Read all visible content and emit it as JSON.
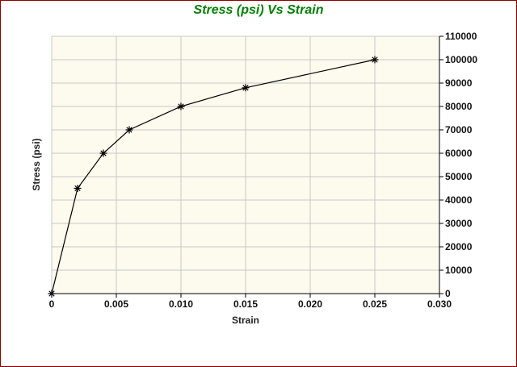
{
  "chart_data": {
    "type": "line",
    "title": "Stress (psi) Vs Strain",
    "xlabel": "Strain",
    "ylabel": "Stress (psi)",
    "xlim": [
      0,
      0.03
    ],
    "ylim": [
      0,
      110000
    ],
    "x_ticks": [
      "0",
      "0.005",
      "0.010",
      "0.015",
      "0.020",
      "0.025",
      "0.030"
    ],
    "y_ticks": [
      "0",
      "10000",
      "20000",
      "30000",
      "40000",
      "50000",
      "60000",
      "70000",
      "80000",
      "90000",
      "100000",
      "110000"
    ],
    "y_axis_side": "right",
    "grid": true,
    "legend": "none",
    "marker": "asterisk",
    "series": [
      {
        "x": [
          0,
          0.002,
          0.004,
          0.006,
          0.01,
          0.015,
          0.025
        ],
        "y": [
          0,
          45000,
          60000,
          70000,
          80000,
          88000,
          100000
        ]
      }
    ]
  },
  "colors": {
    "plot_background": "#fdfaee",
    "grid": "#c8c8c8",
    "title": "#008000",
    "frame": "#8b0000",
    "line": "#000000"
  }
}
